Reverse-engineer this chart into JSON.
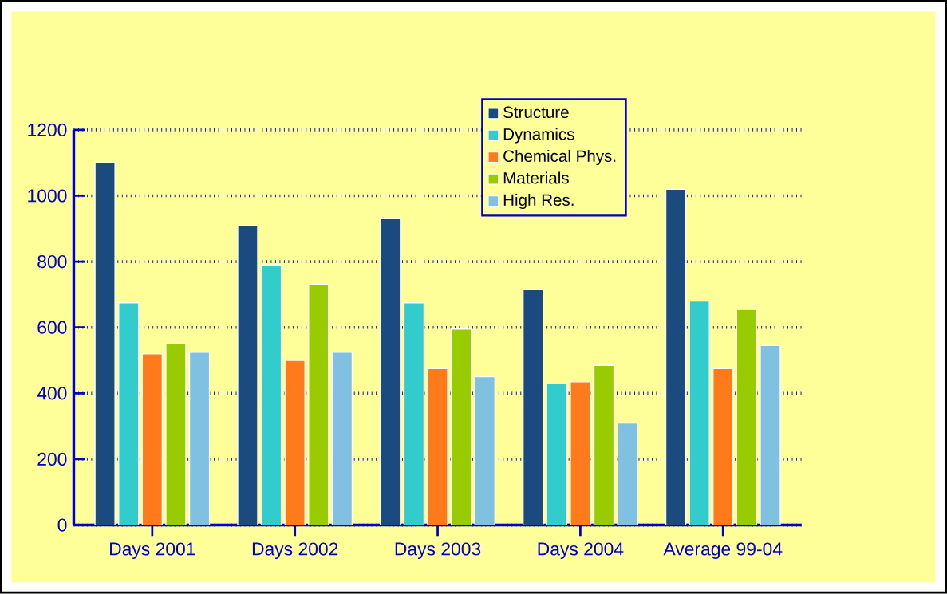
{
  "chart_data": {
    "type": "bar",
    "categories": [
      "Days 2001",
      "Days 2002",
      "Days 2003",
      "Days 2004",
      "Average 99-04"
    ],
    "series": [
      {
        "name": "Structure",
        "color": "#1a4a7e",
        "values": [
          1100,
          910,
          930,
          715,
          1020
        ]
      },
      {
        "name": "Dynamics",
        "color": "#33cccc",
        "values": [
          675,
          790,
          675,
          430,
          680
        ]
      },
      {
        "name": "Chemical Phys.",
        "color": "#ff7a1a",
        "values": [
          520,
          500,
          475,
          435,
          475
        ]
      },
      {
        "name": "Materials",
        "color": "#99cc00",
        "values": [
          550,
          730,
          595,
          485,
          655
        ]
      },
      {
        "name": "High Res.",
        "color": "#80c0e0",
        "values": [
          525,
          525,
          450,
          310,
          545
        ]
      }
    ],
    "ylim": [
      0,
      1200
    ],
    "yticks": [
      0,
      200,
      400,
      600,
      800,
      1000,
      1200
    ],
    "grid": "y",
    "legend": "top right"
  }
}
